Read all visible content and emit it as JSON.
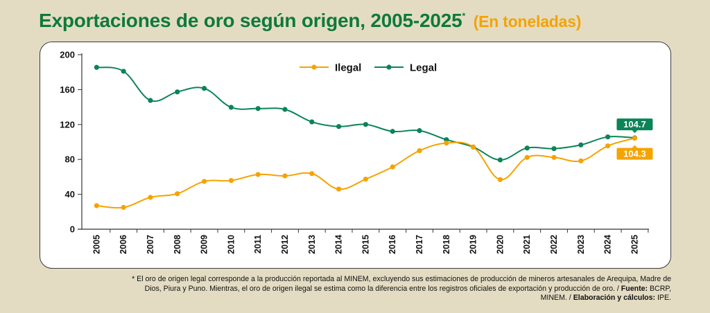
{
  "header": {
    "title": "Exportaciones de oro según origen, 2005-2025",
    "asterisk": "*",
    "unit": "(En toneladas)"
  },
  "colors": {
    "illegal": "#f5a300",
    "legal": "#0b8457",
    "title": "#0e7a3a",
    "background": "#e3dcc3"
  },
  "chart_data": {
    "type": "line",
    "title": "Exportaciones de oro según origen, 2005-2025*",
    "subtitle": "(En toneladas)",
    "xlabel": "",
    "ylabel": "",
    "x": [
      "2005",
      "2006",
      "2007",
      "2008",
      "2009",
      "2010",
      "2011",
      "2012",
      "2013",
      "2014",
      "2015",
      "2016",
      "2017",
      "2018",
      "2019",
      "2020",
      "2021",
      "2022",
      "2023",
      "2024",
      "2025"
    ],
    "ylim": [
      0,
      200
    ],
    "yticks": [
      0,
      40,
      80,
      120,
      160,
      200
    ],
    "ytick_labels": [
      "0",
      "40",
      "80",
      "120",
      "160",
      "200"
    ],
    "grid": false,
    "legend_position": "top-center",
    "series": [
      {
        "name": "Ilegal",
        "color": "#f5a300",
        "values": [
          27,
          25,
          36.5,
          40.7,
          54.8,
          55.8,
          62.7,
          61.1,
          63.7,
          46,
          57.4,
          71.4,
          90,
          98.7,
          94.2,
          56.9,
          82.3,
          82.3,
          78.3,
          95.5,
          104.3
        ],
        "end_label": "104.3"
      },
      {
        "name": "Legal",
        "color": "#0b8457",
        "values": [
          185.5,
          181,
          147.6,
          157.4,
          161.4,
          139.7,
          138.3,
          137.3,
          123,
          117.7,
          120.1,
          112.1,
          113,
          102.6,
          94.2,
          79.4,
          93,
          92.3,
          96.6,
          105.8,
          104.7
        ],
        "end_label": "104.7"
      }
    ]
  },
  "legend": {
    "items": [
      {
        "label": "Ilegal"
      },
      {
        "label": "Legal"
      }
    ]
  },
  "footnote": {
    "line1": "* El oro de origen legal corresponde a la producción reportada al MINEM, excluyendo sus estimaciones de producción de mineros artesanales de Arequipa, Madre de",
    "line2_pre": "Dios, Piura y Puno. Mientras, el oro de origen ilegal se estima como la diferencia entre los registros oficiales de exportación y producción de oro. / ",
    "source_label": "Fuente:",
    "source_text": " BCRP,",
    "line3_pre": "MINEM. / ",
    "credit_label": "Elaboración y cálculos:",
    "credit_text": " IPE."
  }
}
